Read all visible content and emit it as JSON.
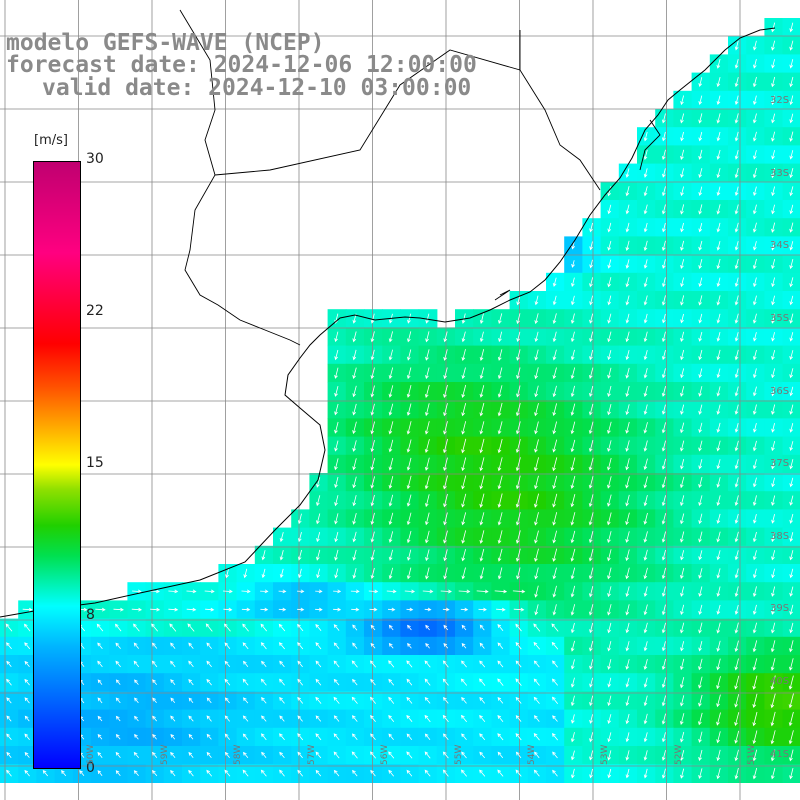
{
  "header": {
    "line1": "modelo GEFS-WAVE (NCEP)",
    "line2": "forecast date: 2024-12-06 12:00:00",
    "line3": "valid date: 2024-12-10 03:00:00"
  },
  "colorbar": {
    "unit": "[m/s]",
    "ticks": [
      "30",
      "22",
      "15",
      "8",
      "0"
    ],
    "tick_values": [
      30,
      22,
      15,
      8,
      0
    ],
    "min": 0,
    "max": 30,
    "colors": [
      "#0000ff",
      "#00b4ff",
      "#00ffff",
      "#00e050",
      "#20d000",
      "#90e000",
      "#ffff00",
      "#ffa000",
      "#ff5000",
      "#ff0000",
      "#ff0080",
      "#c00070"
    ]
  },
  "lat_labels": [
    "32S",
    "33S",
    "34S",
    "35S",
    "36S",
    "37S",
    "38S",
    "39S",
    "40S",
    "41S"
  ],
  "lon_labels": [
    "60W",
    "59W",
    "58W",
    "57W",
    "56W",
    "55W",
    "54W",
    "53W",
    "52W",
    "51W"
  ],
  "map": {
    "land_color": "#ffffff",
    "grid_color": "#888888",
    "coast_color": "#000000",
    "arrow_color": "#ffffff"
  }
}
